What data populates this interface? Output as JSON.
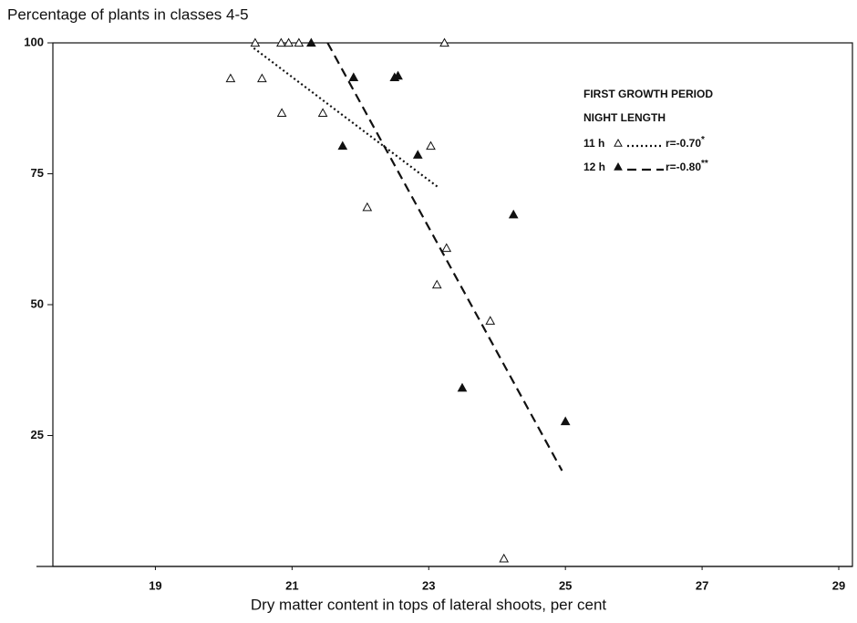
{
  "chart_data": {
    "type": "scatter",
    "title": "Percentage of plants in classes 4-5",
    "x_label": "Dry matter content in tops of lateral shoots, per cent",
    "legend_title": [
      "FIRST GROWTH PERIOD",
      "NIGHT LENGTH"
    ],
    "xlim": [
      17.5,
      29.2
    ],
    "ylim": [
      0,
      100
    ],
    "xticks": [
      19,
      21,
      23,
      25,
      27,
      29
    ],
    "yticks": [
      25,
      50,
      75,
      100
    ],
    "series": [
      {
        "name": "11 h",
        "marker": "open",
        "color": "#111",
        "r_label": "r=-0.70",
        "significance": "*",
        "dash": "2,3",
        "x": [
          20.46,
          20.84,
          20.95,
          21.1,
          23.23,
          20.1,
          20.56,
          20.85,
          21.45,
          22.1,
          23.03,
          23.12,
          23.9,
          24.1,
          23.26
        ],
        "y": [
          100,
          100,
          100,
          100,
          100,
          93.2,
          93.2,
          86.6,
          86.6,
          68.6,
          80.3,
          53.8,
          46.9,
          1.5,
          60.8
        ],
        "fit": {
          "x": [
            20.44,
            23.13
          ],
          "y": [
            99,
            72.5
          ]
        }
      },
      {
        "name": "12 h",
        "marker": "filled",
        "color": "#111",
        "r_label": "r=-0.80",
        "significance": "**",
        "dash": "10,6",
        "x": [
          21.28,
          21.9,
          22.5,
          22.55,
          21.74,
          22.84,
          24.24,
          23.49,
          25.0
        ],
        "y": [
          100,
          93.4,
          93.4,
          93.7,
          80.3,
          78.6,
          67.2,
          34.1,
          27.7
        ],
        "fit": {
          "x": [
            21.52,
            24.95
          ],
          "y": [
            100,
            18.3
          ]
        }
      }
    ]
  }
}
